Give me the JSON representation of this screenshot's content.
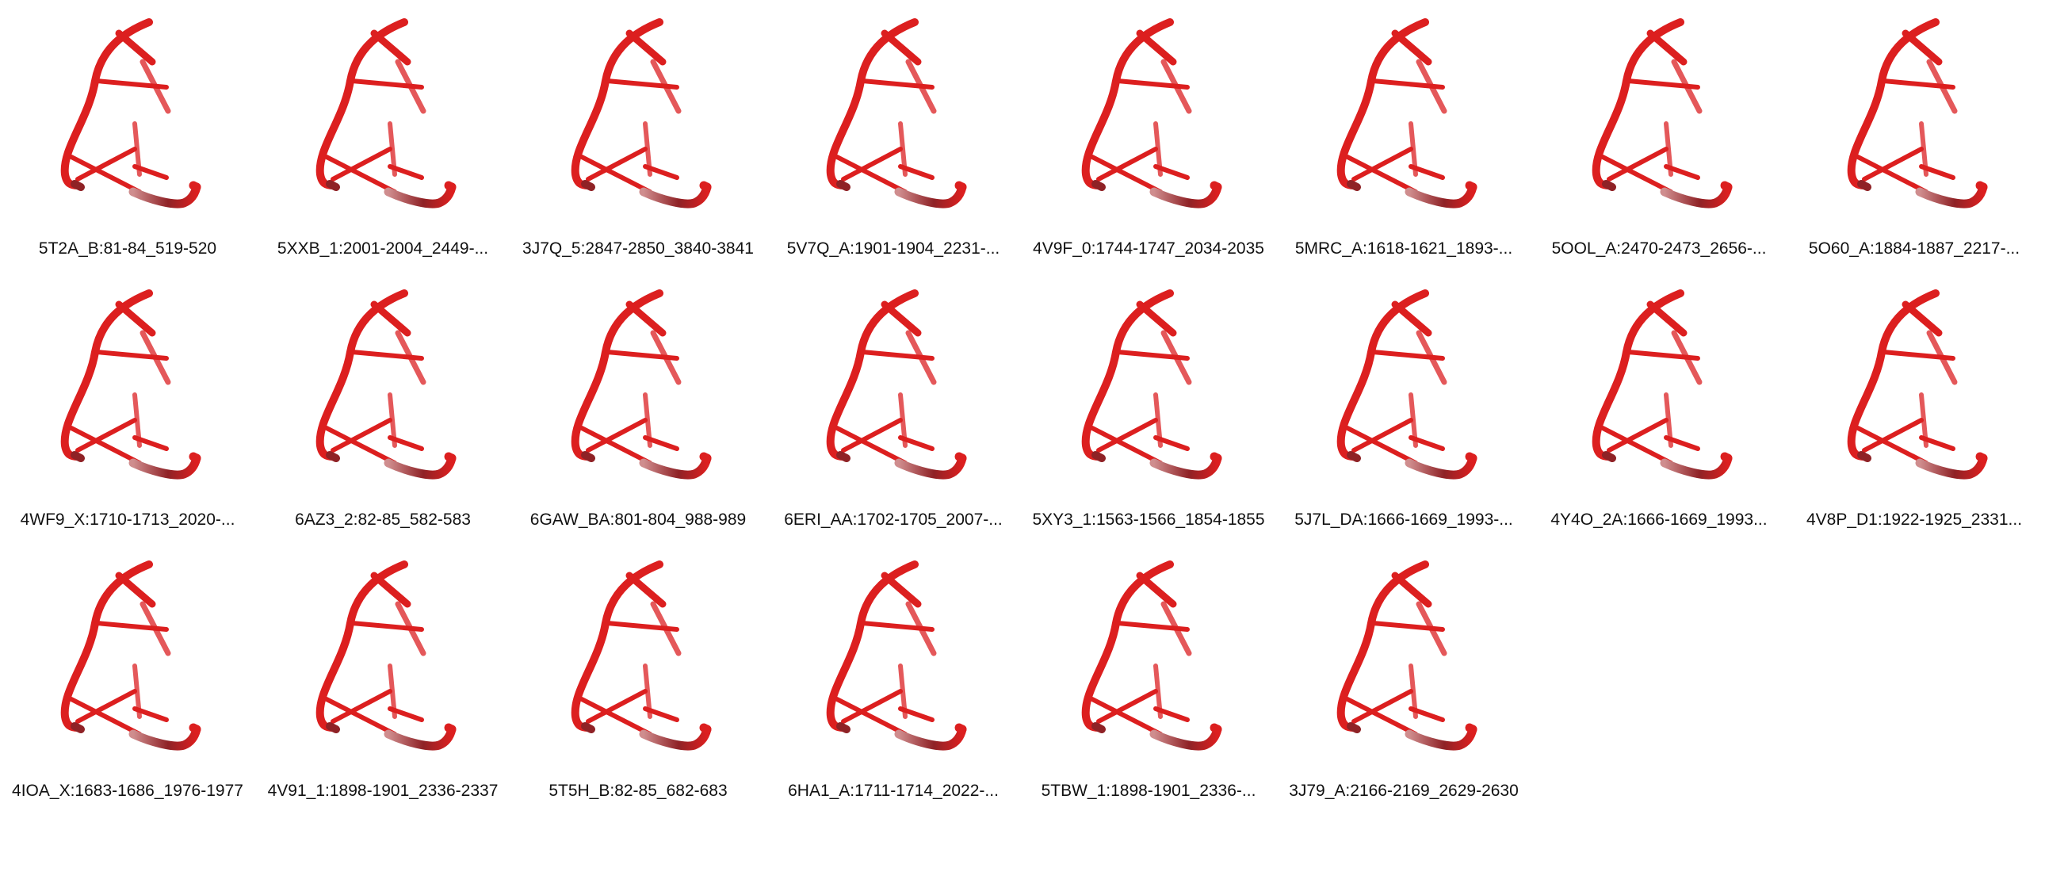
{
  "gallery": {
    "items": [
      {
        "label": "5T2A_B:81-84_519-520"
      },
      {
        "label": "5XXB_1:2001-2004_2449-..."
      },
      {
        "label": "3J7Q_5:2847-2850_3840-3841"
      },
      {
        "label": "5V7Q_A:1901-1904_2231-..."
      },
      {
        "label": "4V9F_0:1744-1747_2034-2035"
      },
      {
        "label": "5MRC_A:1618-1621_1893-..."
      },
      {
        "label": "5OOL_A:2470-2473_2656-..."
      },
      {
        "label": "5O60_A:1884-1887_2217-..."
      },
      {
        "label": "4WF9_X:1710-1713_2020-..."
      },
      {
        "label": "6AZ3_2:82-85_582-583"
      },
      {
        "label": "6GAW_BA:801-804_988-989"
      },
      {
        "label": "6ERI_AA:1702-1705_2007-..."
      },
      {
        "label": "5XY3_1:1563-1566_1854-1855"
      },
      {
        "label": "5J7L_DA:1666-1669_1993-..."
      },
      {
        "label": "4Y4O_2A:1666-1669_1993..."
      },
      {
        "label": "4V8P_D1:1922-1925_2331..."
      },
      {
        "label": "4IOA_X:1683-1686_1976-1977"
      },
      {
        "label": "4V91_1:1898-1901_2336-2337"
      },
      {
        "label": "5T5H_B:82-85_682-683"
      },
      {
        "label": "6HA1_A:1711-1714_2022-..."
      },
      {
        "label": "5TBW_1:1898-1901_2336-..."
      },
      {
        "label": "3J79_A:2166-2169_2629-2630"
      }
    ]
  },
  "colors": {
    "tube_main": "#dc1f1f",
    "tube_light": "#e4585a",
    "tube_pale": "#cf8d8e",
    "tube_dark": "#8f2226"
  }
}
